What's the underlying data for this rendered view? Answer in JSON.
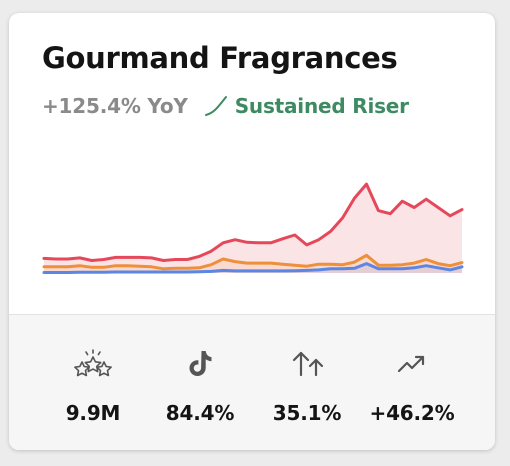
{
  "card": {
    "title": "Gourmand Fragrances",
    "yoy": "+125.4% YoY",
    "trend_label": "Sustained Riser"
  },
  "colors": {
    "red_series": "#e5485a",
    "orange_series": "#ee8f3a",
    "blue_series": "#5b86e5",
    "trend_green": "#3d8a63",
    "muted_text": "#8a8a8a"
  },
  "chart_data": {
    "type": "area",
    "title": "",
    "xlabel": "",
    "ylabel": "",
    "axes_visible": false,
    "grid": false,
    "ylim": [
      0,
      100
    ],
    "series": [
      {
        "color": "#e5485a",
        "values": [
          14,
          13.5,
          13.5,
          14.5,
          12,
          13,
          15,
          15,
          15,
          14.5,
          12,
          13,
          13,
          16,
          21,
          29,
          32,
          29.5,
          29,
          29,
          33,
          36.5,
          27,
          32,
          40,
          53,
          72,
          85.5,
          60,
          57,
          69,
          63,
          71,
          63,
          55,
          61
        ]
      },
      {
        "color": "#ee8f3a",
        "values": [
          6,
          6,
          6,
          7,
          5.5,
          5.5,
          7,
          7,
          6.5,
          6,
          4,
          4.5,
          4.5,
          5,
          8,
          13.5,
          11,
          9.5,
          9.5,
          9.5,
          8.5,
          7.5,
          6.5,
          8.5,
          8.5,
          8,
          10.5,
          17,
          7.5,
          7.5,
          8,
          9.5,
          13,
          9,
          7,
          10
        ]
      },
      {
        "color": "#5b86e5",
        "values": [
          0.5,
          0.5,
          0.5,
          0.8,
          0.8,
          0.8,
          1,
          1,
          1,
          1,
          1,
          1,
          1,
          1.2,
          1.5,
          2.5,
          2,
          2,
          2,
          2,
          2,
          2.2,
          2.5,
          3,
          4,
          4,
          4.5,
          9,
          4,
          4,
          4,
          5,
          7,
          5,
          3,
          6
        ]
      }
    ]
  },
  "stats": [
    {
      "icon": "stars-icon",
      "value": "9.9M"
    },
    {
      "icon": "tiktok-icon",
      "value": "84.4%"
    },
    {
      "icon": "up-arrows-icon",
      "value": "35.1%"
    },
    {
      "icon": "trending-up-icon",
      "value": "+46.2%"
    }
  ]
}
